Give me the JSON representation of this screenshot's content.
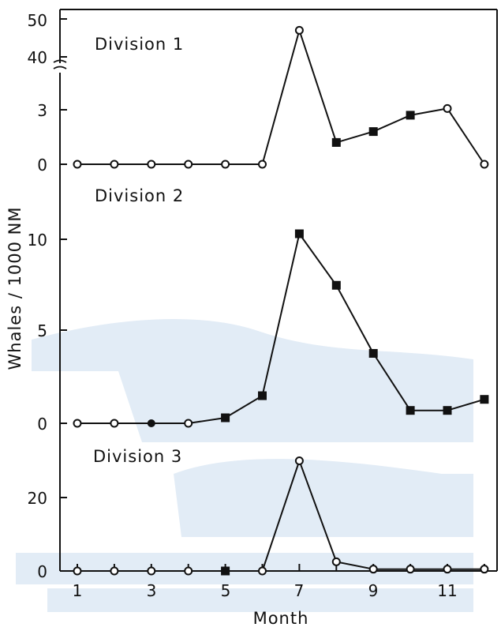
{
  "chart_data": {
    "type": "line",
    "ylabel": "Whales / 1000 NM",
    "xlabel": "Month",
    "x_ticks": [
      "1",
      "3",
      "5",
      "7",
      "9",
      "11"
    ],
    "x_range": [
      1,
      12
    ],
    "panels": [
      {
        "title": "Division 1",
        "y_ticks": [
          "50",
          "40",
          "3",
          "0"
        ],
        "y_axis_break": "between 3 and 40 (broken scale)",
        "points": [
          {
            "month": 1,
            "value": 0,
            "marker": "open-circle"
          },
          {
            "month": 2,
            "value": 0,
            "marker": "open-circle"
          },
          {
            "month": 3,
            "value": 0,
            "marker": "open-circle"
          },
          {
            "month": 4,
            "value": 0,
            "marker": "open-circle"
          },
          {
            "month": 5,
            "value": 0,
            "marker": "open-circle"
          },
          {
            "month": 6,
            "value": 0,
            "marker": "open-circle"
          },
          {
            "month": 7,
            "value": 47,
            "marker": "open-circle"
          },
          {
            "month": 8,
            "value": 1.2,
            "marker": "filled-square"
          },
          {
            "month": 9,
            "value": 1.8,
            "marker": "filled-square"
          },
          {
            "month": 10,
            "value": 2.7,
            "marker": "filled-square"
          },
          {
            "month": 11,
            "value": 4.0,
            "marker": "open-circle"
          },
          {
            "month": 12,
            "value": 0,
            "marker": "open-circle"
          }
        ]
      },
      {
        "title": "Division 2",
        "y_ticks": [
          "10",
          "5",
          "0"
        ],
        "ylim": [
          0,
          14
        ],
        "points": [
          {
            "month": 1,
            "value": 0,
            "marker": "open-circle"
          },
          {
            "month": 2,
            "value": 0,
            "marker": "open-circle"
          },
          {
            "month": 3,
            "value": 0,
            "marker": "filled-circle"
          },
          {
            "month": 4,
            "value": 0,
            "marker": "open-circle"
          },
          {
            "month": 5,
            "value": 0.3,
            "marker": "filled-square"
          },
          {
            "month": 6,
            "value": 1.5,
            "marker": "filled-square"
          },
          {
            "month": 7,
            "value": 10.3,
            "marker": "filled-square"
          },
          {
            "month": 8,
            "value": 7.5,
            "marker": "filled-square"
          },
          {
            "month": 9,
            "value": 3.8,
            "marker": "filled-square"
          },
          {
            "month": 10,
            "value": 0.7,
            "marker": "filled-square"
          },
          {
            "month": 11,
            "value": 0.7,
            "marker": "filled-square"
          },
          {
            "month": 12,
            "value": 1.3,
            "marker": "filled-square"
          }
        ]
      },
      {
        "title": "Division 3",
        "y_ticks": [
          "20",
          "0"
        ],
        "ylim": [
          0,
          36
        ],
        "points": [
          {
            "month": 1,
            "value": 0,
            "marker": "open-circle"
          },
          {
            "month": 2,
            "value": 0,
            "marker": "open-circle"
          },
          {
            "month": 3,
            "value": 0,
            "marker": "open-circle"
          },
          {
            "month": 4,
            "value": 0,
            "marker": "open-circle"
          },
          {
            "month": 5,
            "value": 0,
            "marker": "filled-square"
          },
          {
            "month": 6,
            "value": 0,
            "marker": "open-circle"
          },
          {
            "month": 7,
            "value": 30,
            "marker": "open-circle"
          },
          {
            "month": 8,
            "value": 2.5,
            "marker": "open-circle"
          },
          {
            "month": 9,
            "value": 0.5,
            "marker": "open-circle"
          },
          {
            "month": 10,
            "value": 0.5,
            "marker": "open-circle"
          },
          {
            "month": 11,
            "value": 0.5,
            "marker": "open-circle"
          },
          {
            "month": 12,
            "value": 0.5,
            "marker": "open-circle"
          }
        ]
      }
    ],
    "colors": {
      "ink": "#111111",
      "watermark": "#dfeaf5"
    },
    "grid": false
  }
}
